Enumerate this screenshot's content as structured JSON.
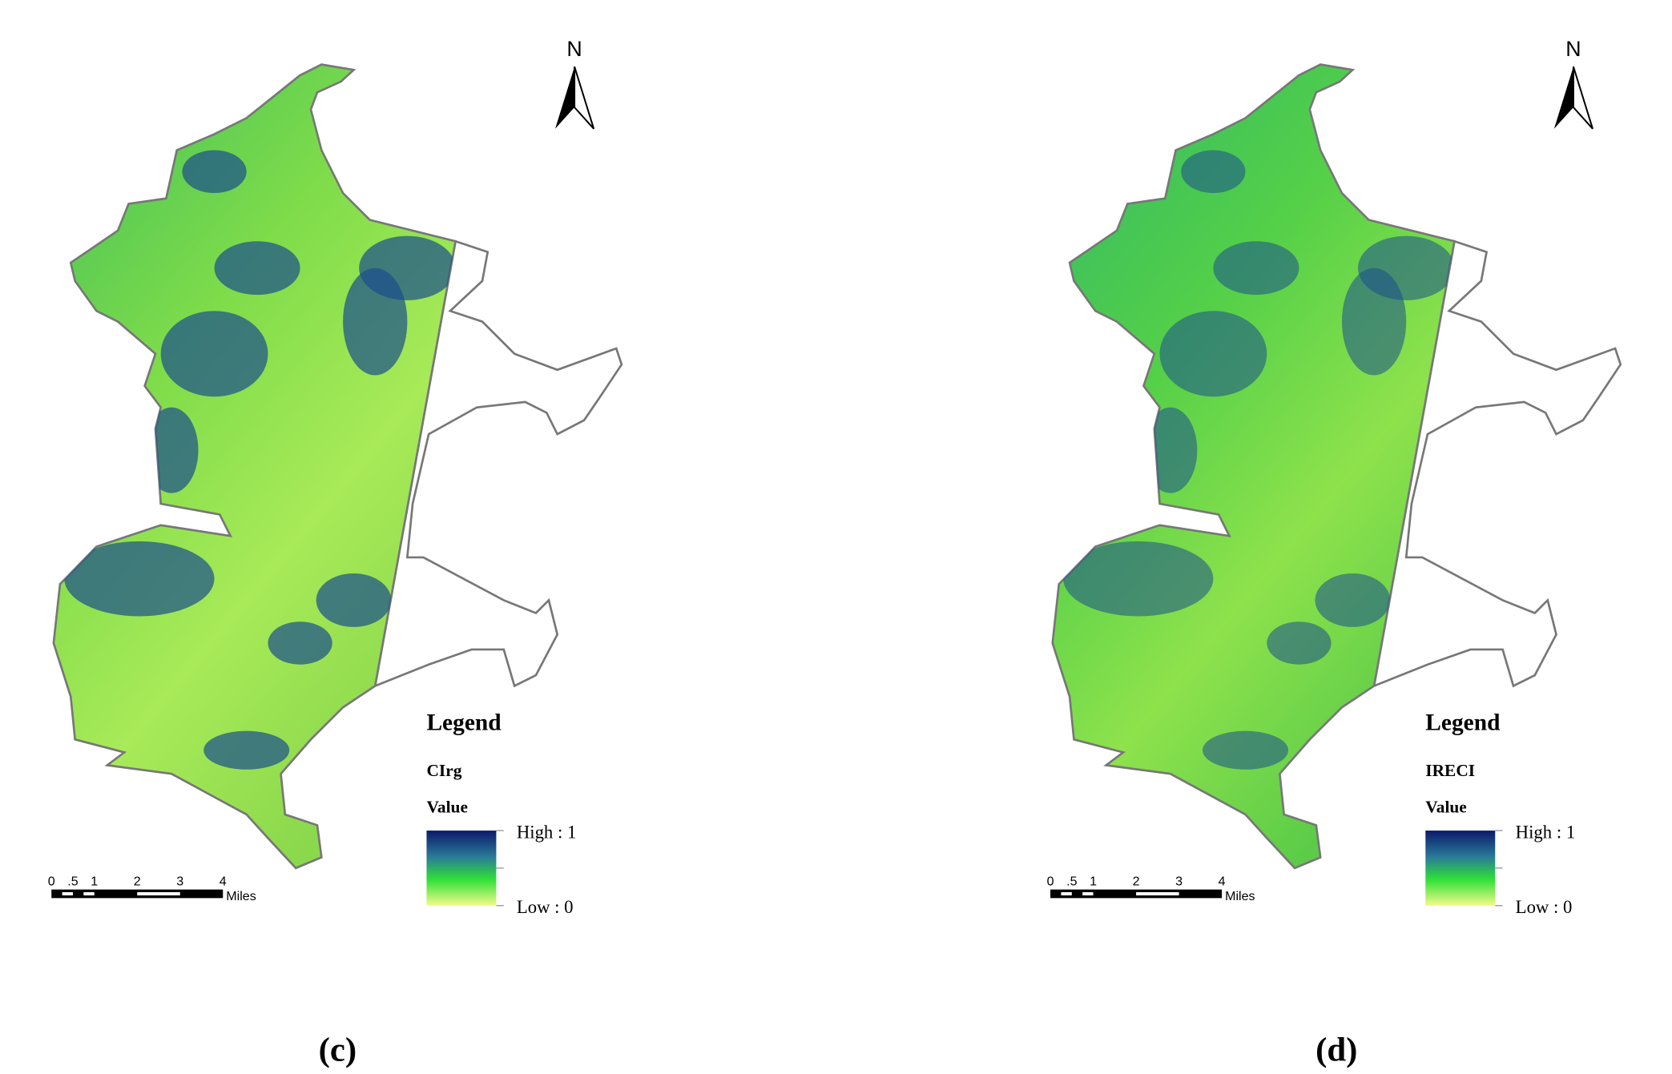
{
  "panels": [
    {
      "north": "N",
      "legend": {
        "title": "Legend",
        "layer": "CIrg",
        "field": "Value",
        "high": "High : 1",
        "low": "Low : 0"
      },
      "scale_bar": {
        "ticks": [
          "0",
          ".5",
          "1",
          "2",
          "3",
          "4"
        ],
        "unit": "Miles"
      },
      "caption": "(c)"
    },
    {
      "north": "N",
      "legend": {
        "title": "Legend",
        "layer": "IRECI",
        "field": "Value",
        "high": "High : 1",
        "low": "Low : 0"
      },
      "scale_bar": {
        "ticks": [
          "0",
          ".5",
          "1",
          "2",
          "3",
          "4"
        ],
        "unit": "Miles"
      },
      "caption": "(d)"
    }
  ]
}
